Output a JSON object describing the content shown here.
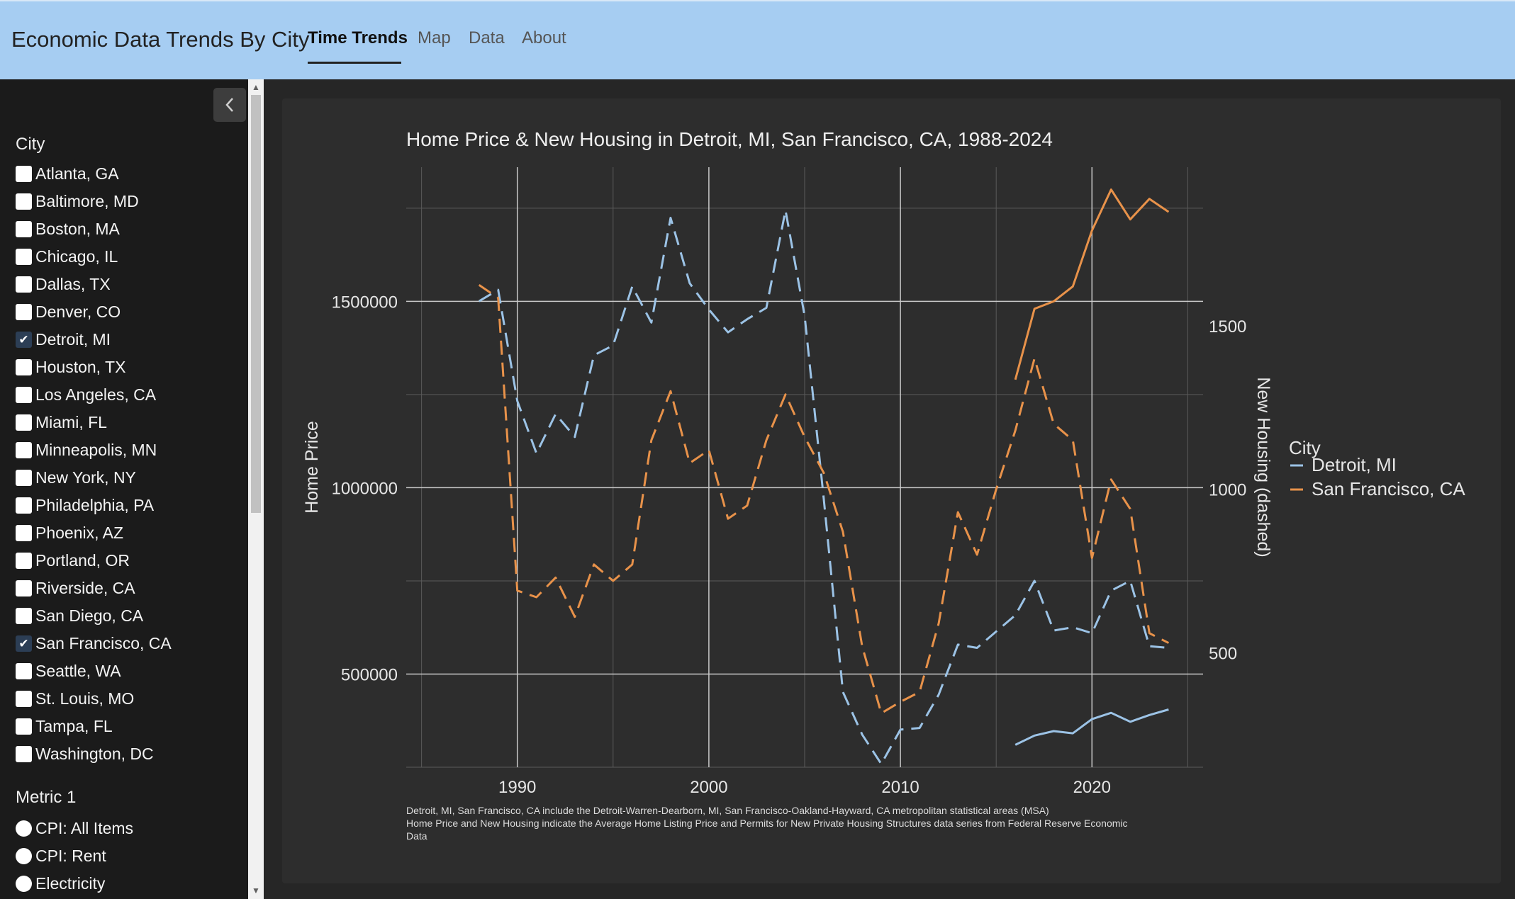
{
  "app": {
    "title": "Economic Data Trends By City"
  },
  "tabs": [
    {
      "label": "Time Trends",
      "active": true
    },
    {
      "label": "Map",
      "active": false
    },
    {
      "label": "Data",
      "active": false
    },
    {
      "label": "About",
      "active": false
    }
  ],
  "sidebar": {
    "collapse_icon": "chevron-left-icon",
    "city_heading": "City",
    "cities": [
      {
        "label": "Atlanta, GA",
        "checked": false
      },
      {
        "label": "Baltimore, MD",
        "checked": false
      },
      {
        "label": "Boston, MA",
        "checked": false
      },
      {
        "label": "Chicago, IL",
        "checked": false
      },
      {
        "label": "Dallas, TX",
        "checked": false
      },
      {
        "label": "Denver, CO",
        "checked": false
      },
      {
        "label": "Detroit, MI",
        "checked": true
      },
      {
        "label": "Houston, TX",
        "checked": false
      },
      {
        "label": "Los Angeles, CA",
        "checked": false
      },
      {
        "label": "Miami, FL",
        "checked": false
      },
      {
        "label": "Minneapolis, MN",
        "checked": false
      },
      {
        "label": "New York, NY",
        "checked": false
      },
      {
        "label": "Philadelphia, PA",
        "checked": false
      },
      {
        "label": "Phoenix, AZ",
        "checked": false
      },
      {
        "label": "Portland, OR",
        "checked": false
      },
      {
        "label": "Riverside, CA",
        "checked": false
      },
      {
        "label": "San Diego, CA",
        "checked": false
      },
      {
        "label": "San Francisco, CA",
        "checked": true
      },
      {
        "label": "Seattle, WA",
        "checked": false
      },
      {
        "label": "St. Louis, MO",
        "checked": false
      },
      {
        "label": "Tampa, FL",
        "checked": false
      },
      {
        "label": "Washington, DC",
        "checked": false
      }
    ],
    "metric_heading": "Metric 1",
    "metrics": [
      {
        "label": "CPI: All Items"
      },
      {
        "label": "CPI: Rent"
      },
      {
        "label": "Electricity"
      }
    ]
  },
  "chart_data": {
    "type": "line",
    "title": "Home Price & New Housing in Detroit, MI, San Francisco, CA, 1988-2024",
    "ylabel": "Home Price",
    "y2label": "New Housing (dashed)",
    "xlim": [
      1984.2,
      2025.8
    ],
    "ylim": [
      250000,
      1860000
    ],
    "y2lim": [
      150,
      1985
    ],
    "xticks": [
      "1990",
      "2000",
      "2010",
      "2020"
    ],
    "xtick_values": [
      1990,
      2000,
      2010,
      2020
    ],
    "yticks": [
      "500000",
      "1000000",
      "1500000"
    ],
    "ytick_values": [
      500000,
      1000000,
      1500000
    ],
    "y2ticks": [
      "500",
      "1000",
      "1500"
    ],
    "y2tick_values": [
      500,
      1000,
      1500
    ],
    "legend_title": "City",
    "legend_position": "right",
    "grid": true,
    "caption": [
      "Detroit, MI, San Francisco, CA include the Detroit-Warren-Dearborn, MI, San Francisco-Oakland-Hayward, CA metropolitan statistical areas (MSA)",
      "Home Price and New Housing indicate the Average Home Listing Price and Permits for New Private Housing Structures data series from Federal Reserve Economic",
      "Data"
    ],
    "series": [
      {
        "name": "Detroit, MI",
        "color": "#9cc3e6",
        "metric": "Home Price",
        "axis": "left",
        "dash": false,
        "x": [
          2016,
          2017,
          2018,
          2019,
          2020,
          2021,
          2022,
          2023,
          2024
        ],
        "values": [
          310000,
          335000,
          347000,
          341000,
          379000,
          396000,
          372000,
          390000,
          405000
        ]
      },
      {
        "name": "San Francisco, CA",
        "color": "#e8924a",
        "metric": "Home Price",
        "axis": "left",
        "dash": false,
        "x": [
          2016,
          2017,
          2018,
          2019,
          2020,
          2021,
          2022,
          2023,
          2024
        ],
        "values": [
          1290000,
          1480000,
          1500000,
          1540000,
          1690000,
          1800000,
          1720000,
          1775000,
          1740000
        ]
      },
      {
        "name": "Detroit, MI",
        "color": "#9cc3e6",
        "metric": "New Housing",
        "axis": "right",
        "dash": true,
        "x": [
          1988,
          1989,
          1990,
          1991,
          1992,
          1993,
          1994,
          1995,
          1996,
          1997,
          1998,
          1999,
          2000,
          2001,
          2002,
          2003,
          2004,
          2005,
          2006,
          2007,
          2008,
          2009,
          2010,
          2011,
          2012,
          2013,
          2014,
          2015,
          2016,
          2017,
          2018,
          2019,
          2020,
          2021,
          2022,
          2023,
          2024
        ],
        "values": [
          1575,
          1610,
          1270,
          1110,
          1230,
          1160,
          1410,
          1440,
          1620,
          1510,
          1830,
          1630,
          1550,
          1480,
          1520,
          1555,
          1853,
          1530,
          970,
          380,
          250,
          160,
          265,
          270,
          372,
          525,
          515,
          565,
          615,
          720,
          568,
          578,
          560,
          690,
          720,
          520,
          515
        ]
      },
      {
        "name": "San Francisco, CA",
        "color": "#e8924a",
        "metric": "New Housing",
        "axis": "right",
        "dash": true,
        "x": [
          1988,
          1989,
          1990,
          1991,
          1992,
          1993,
          1994,
          1995,
          1996,
          1997,
          1998,
          1999,
          2000,
          2001,
          2002,
          2003,
          2004,
          2005,
          2006,
          2007,
          2008,
          2009,
          2010,
          2011,
          2012,
          2013,
          2014,
          2015,
          2016,
          2017,
          2018,
          2019,
          2020,
          2021,
          2022,
          2023,
          2024
        ],
        "values": [
          1625,
          1585,
          690,
          670,
          730,
          610,
          770,
          720,
          770,
          1150,
          1300,
          1080,
          1120,
          910,
          950,
          1150,
          1290,
          1160,
          1050,
          870,
          520,
          315,
          350,
          380,
          590,
          930,
          800,
          1000,
          1180,
          1400,
          1200,
          1150,
          790,
          1030,
          940,
          560,
          530
        ]
      }
    ]
  }
}
